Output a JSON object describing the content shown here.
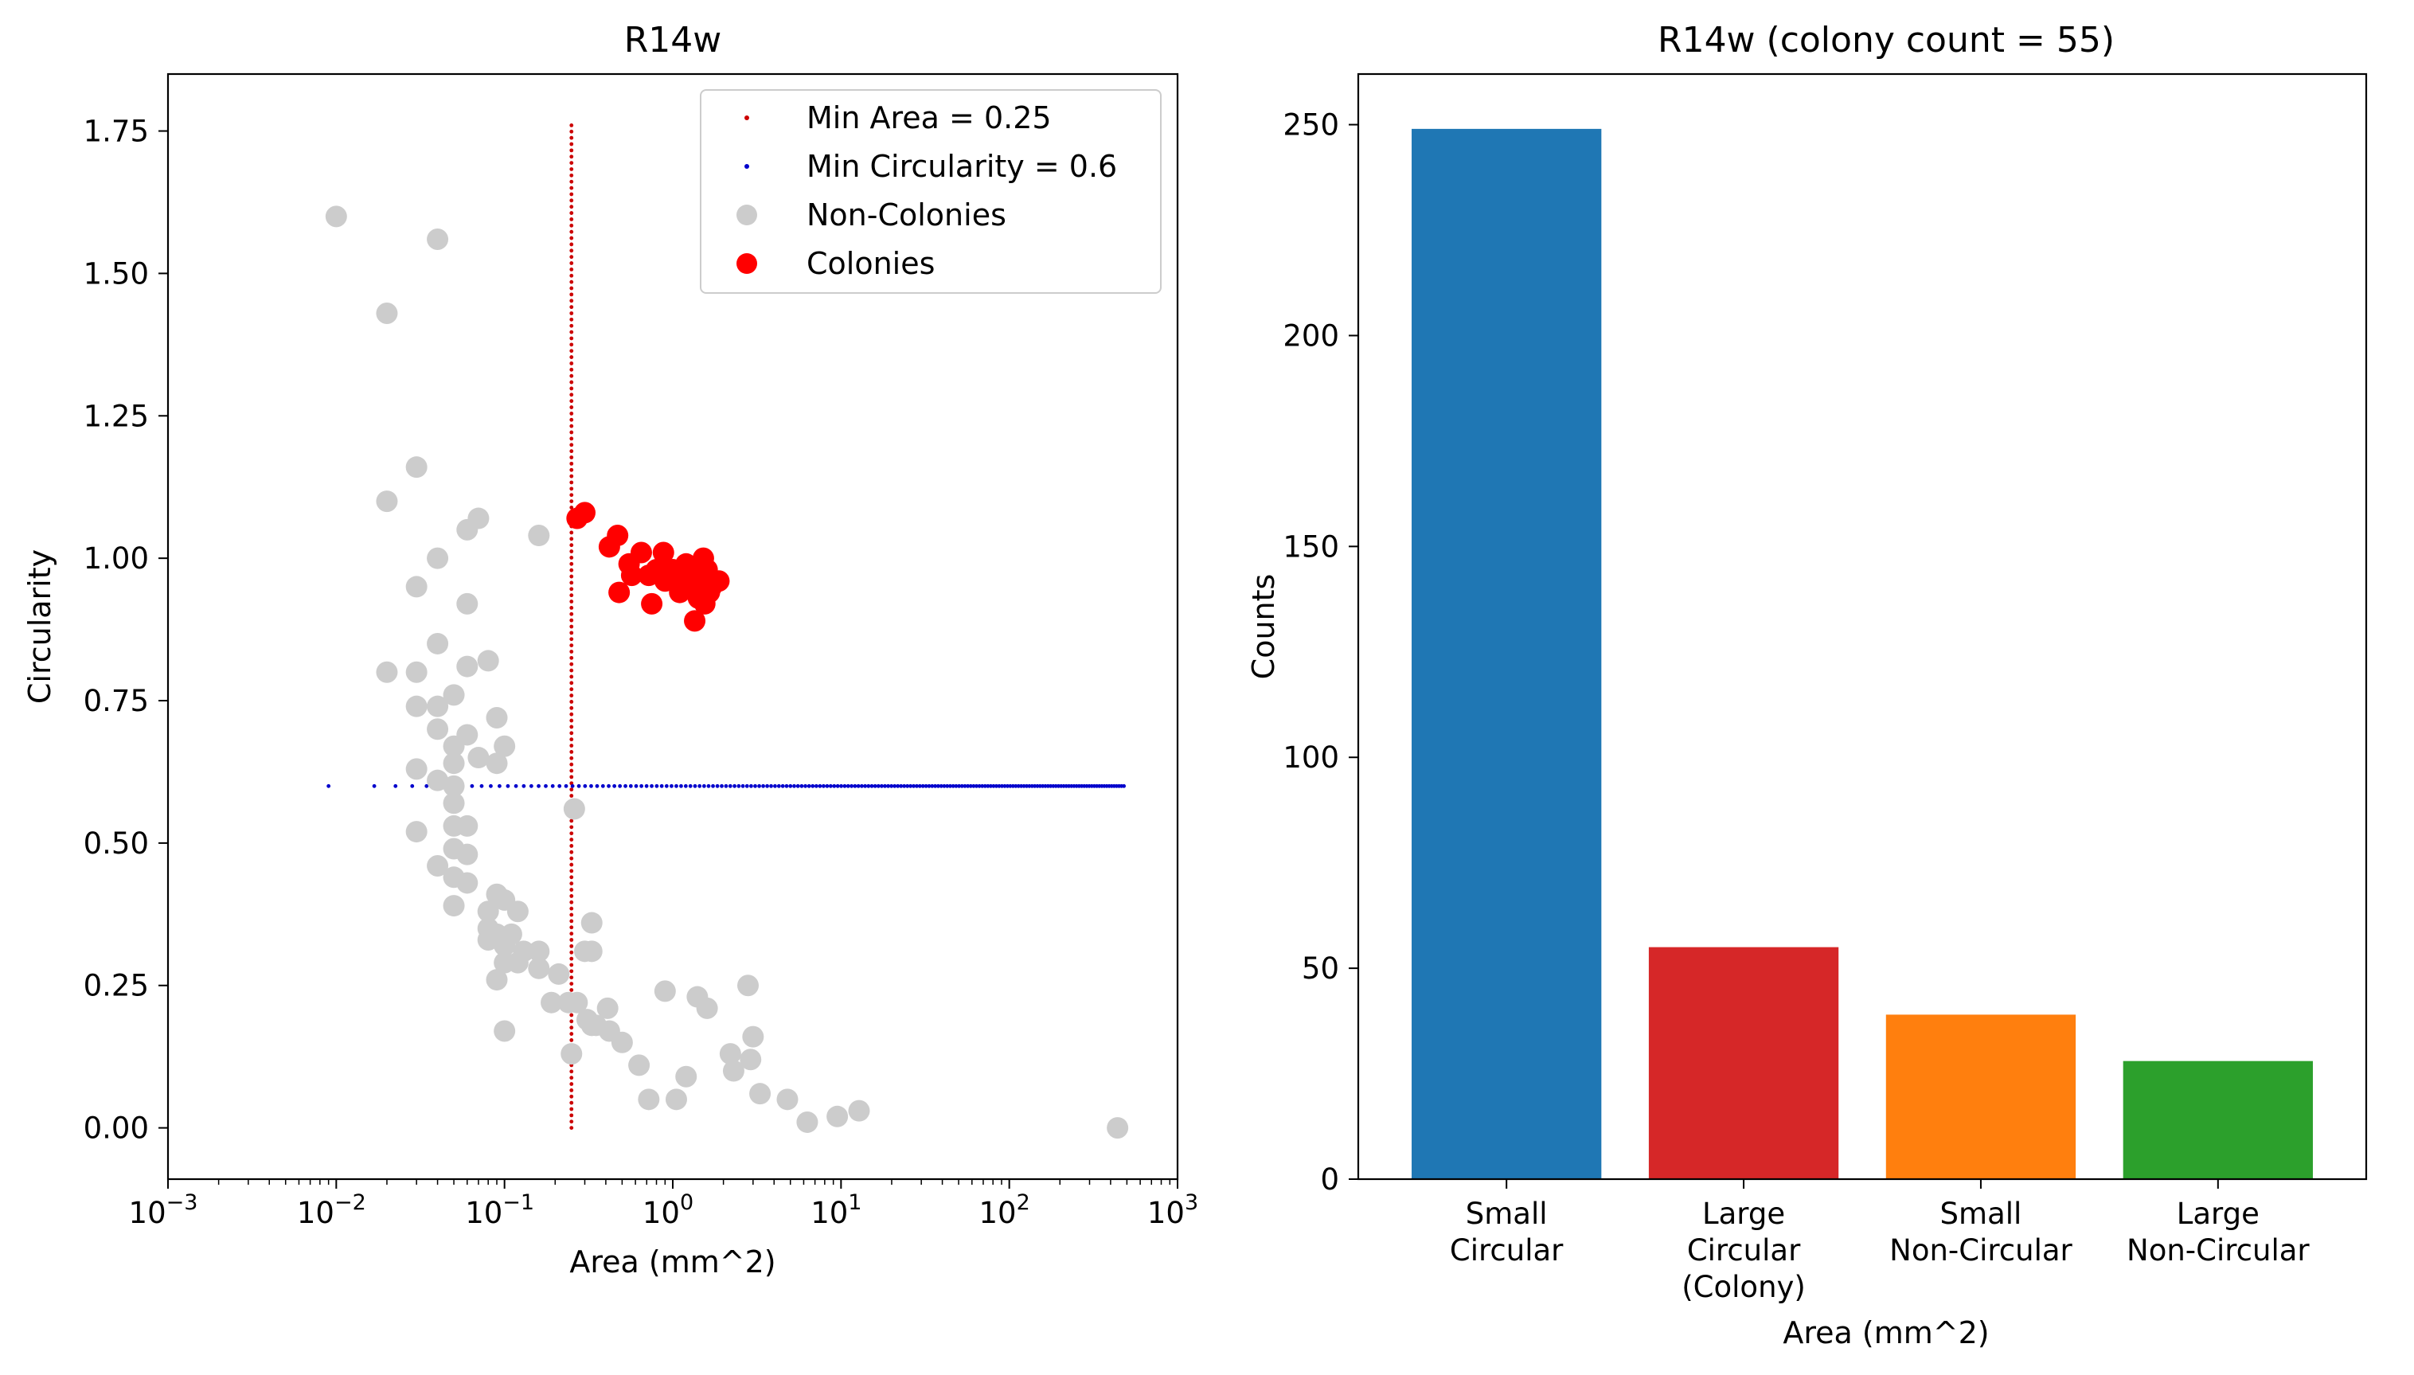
{
  "chart_data": [
    {
      "type": "scatter",
      "title": "R14w",
      "xlabel": "Area (mm^2)",
      "ylabel": "Circularity",
      "xscale": "log",
      "xlim": [
        0.001,
        1000
      ],
      "ylim": [
        -0.09,
        1.85
      ],
      "x_ticks": [
        {
          "base": "10",
          "exp": "−3",
          "value": 0.001
        },
        {
          "base": "10",
          "exp": "−2",
          "value": 0.01
        },
        {
          "base": "10",
          "exp": "−1",
          "value": 0.1
        },
        {
          "base": "10",
          "exp": "0",
          "value": 1
        },
        {
          "base": "10",
          "exp": "1",
          "value": 10
        },
        {
          "base": "10",
          "exp": "2",
          "value": 100
        },
        {
          "base": "10",
          "exp": "3",
          "value": 1000
        }
      ],
      "y_ticks": [
        {
          "label": "0.00",
          "value": 0.0
        },
        {
          "label": "0.25",
          "value": 0.25
        },
        {
          "label": "0.50",
          "value": 0.5
        },
        {
          "label": "0.75",
          "value": 0.75
        },
        {
          "label": "1.00",
          "value": 1.0
        },
        {
          "label": "1.25",
          "value": 1.25
        },
        {
          "label": "1.50",
          "value": 1.5
        },
        {
          "label": "1.75",
          "value": 1.75
        }
      ],
      "legend_position": "upper right",
      "thresholds": {
        "min_area": {
          "label": "Min Area = 0.25",
          "value": 0.25,
          "y_range": [
            0,
            1.76
          ],
          "color": "#cc0000"
        },
        "min_circularity": {
          "label": "Min Circularity = 0.6",
          "value": 0.6,
          "x_range": [
            0.009,
            480
          ],
          "color": "#0000cc"
        }
      },
      "series": [
        {
          "name": "Non-Colonies",
          "color": "#cccccc",
          "points": [
            [
              0.01,
              1.6
            ],
            [
              0.04,
              1.56
            ],
            [
              0.02,
              1.43
            ],
            [
              0.03,
              1.16
            ],
            [
              0.02,
              1.1
            ],
            [
              0.07,
              1.07
            ],
            [
              0.06,
              1.05
            ],
            [
              0.16,
              1.04
            ],
            [
              0.04,
              1.0
            ],
            [
              0.03,
              0.95
            ],
            [
              0.06,
              0.92
            ],
            [
              0.04,
              0.85
            ],
            [
              0.08,
              0.82
            ],
            [
              0.06,
              0.81
            ],
            [
              0.02,
              0.8
            ],
            [
              0.03,
              0.8
            ],
            [
              0.05,
              0.76
            ],
            [
              0.03,
              0.74
            ],
            [
              0.04,
              0.74
            ],
            [
              0.09,
              0.72
            ],
            [
              0.04,
              0.7
            ],
            [
              0.06,
              0.69
            ],
            [
              0.05,
              0.67
            ],
            [
              0.1,
              0.67
            ],
            [
              0.07,
              0.65
            ],
            [
              0.05,
              0.64
            ],
            [
              0.09,
              0.64
            ],
            [
              0.03,
              0.63
            ],
            [
              0.04,
              0.61
            ],
            [
              0.05,
              0.6
            ],
            [
              0.05,
              0.57
            ],
            [
              0.26,
              0.56
            ],
            [
              0.05,
              0.53
            ],
            [
              0.06,
              0.53
            ],
            [
              0.03,
              0.52
            ],
            [
              0.05,
              0.49
            ],
            [
              0.06,
              0.48
            ],
            [
              0.04,
              0.46
            ],
            [
              0.05,
              0.44
            ],
            [
              0.06,
              0.43
            ],
            [
              0.09,
              0.41
            ],
            [
              0.1,
              0.4
            ],
            [
              0.05,
              0.39
            ],
            [
              0.08,
              0.38
            ],
            [
              0.12,
              0.38
            ],
            [
              0.08,
              0.35
            ],
            [
              0.33,
              0.36
            ],
            [
              0.09,
              0.34
            ],
            [
              0.11,
              0.34
            ],
            [
              0.08,
              0.33
            ],
            [
              0.1,
              0.32
            ],
            [
              0.13,
              0.31
            ],
            [
              0.16,
              0.31
            ],
            [
              0.3,
              0.31
            ],
            [
              0.33,
              0.31
            ],
            [
              0.1,
              0.29
            ],
            [
              0.12,
              0.29
            ],
            [
              0.16,
              0.28
            ],
            [
              0.21,
              0.27
            ],
            [
              0.09,
              0.26
            ],
            [
              2.8,
              0.25
            ],
            [
              0.9,
              0.24
            ],
            [
              1.4,
              0.23
            ],
            [
              0.19,
              0.22
            ],
            [
              0.24,
              0.22
            ],
            [
              0.27,
              0.22
            ],
            [
              1.6,
              0.21
            ],
            [
              0.41,
              0.21
            ],
            [
              0.31,
              0.19
            ],
            [
              0.33,
              0.18
            ],
            [
              0.35,
              0.18
            ],
            [
              0.42,
              0.17
            ],
            [
              0.1,
              0.17
            ],
            [
              3.0,
              0.16
            ],
            [
              0.5,
              0.15
            ],
            [
              0.25,
              0.13
            ],
            [
              2.2,
              0.13
            ],
            [
              2.9,
              0.12
            ],
            [
              0.63,
              0.11
            ],
            [
              2.3,
              0.1
            ],
            [
              1.2,
              0.09
            ],
            [
              3.3,
              0.06
            ],
            [
              0.72,
              0.05
            ],
            [
              1.05,
              0.05
            ],
            [
              4.8,
              0.05
            ],
            [
              9.5,
              0.02
            ],
            [
              12.8,
              0.03
            ],
            [
              6.3,
              0.01
            ],
            [
              440,
              0.0
            ]
          ]
        },
        {
          "name": "Colonies",
          "color": "#ff0000",
          "points": [
            [
              0.3,
              1.08
            ],
            [
              0.27,
              1.07
            ],
            [
              0.47,
              1.04
            ],
            [
              0.42,
              1.02
            ],
            [
              0.88,
              1.01
            ],
            [
              0.65,
              1.01
            ],
            [
              1.52,
              1.0
            ],
            [
              0.55,
              0.99
            ],
            [
              1.2,
              0.99
            ],
            [
              0.8,
              0.98
            ],
            [
              1.0,
              0.98
            ],
            [
              1.6,
              0.98
            ],
            [
              1.1,
              0.97
            ],
            [
              1.3,
              0.97
            ],
            [
              0.57,
              0.97
            ],
            [
              0.72,
              0.97
            ],
            [
              1.45,
              0.96
            ],
            [
              1.88,
              0.96
            ],
            [
              0.9,
              0.96
            ],
            [
              1.7,
              0.95
            ],
            [
              1.2,
              0.95
            ],
            [
              1.65,
              0.94
            ],
            [
              0.48,
              0.94
            ],
            [
              1.1,
              0.94
            ],
            [
              1.42,
              0.93
            ],
            [
              1.55,
              0.92
            ],
            [
              0.75,
              0.92
            ],
            [
              1.35,
              0.89
            ]
          ]
        }
      ],
      "legend": [
        {
          "label": "Min Area = 0.25",
          "marker": "small-dot",
          "color": "#cc0000"
        },
        {
          "label": "Min Circularity = 0.6",
          "marker": "small-dot",
          "color": "#0000cc"
        },
        {
          "label": "Non-Colonies",
          "marker": "circle",
          "color": "#cccccc"
        },
        {
          "label": "Colonies",
          "marker": "circle",
          "color": "#ff0000"
        }
      ]
    },
    {
      "type": "bar",
      "title": "R14w (colony count = 55)",
      "xlabel": "Area (mm^2)",
      "ylabel": "Counts",
      "ylim": [
        0,
        262
      ],
      "y_ticks": [
        0,
        50,
        100,
        150,
        200,
        250
      ],
      "categories": [
        [
          "Small",
          "Circular"
        ],
        [
          "Large",
          "Circular",
          "(Colony)"
        ],
        [
          "Small",
          "Non-Circular"
        ],
        [
          "Large",
          "Non-Circular"
        ]
      ],
      "values": [
        249,
        55,
        39,
        28
      ],
      "colors": [
        "#1f77b4",
        "#d62728",
        "#ff7f0e",
        "#2ca02c"
      ]
    }
  ]
}
